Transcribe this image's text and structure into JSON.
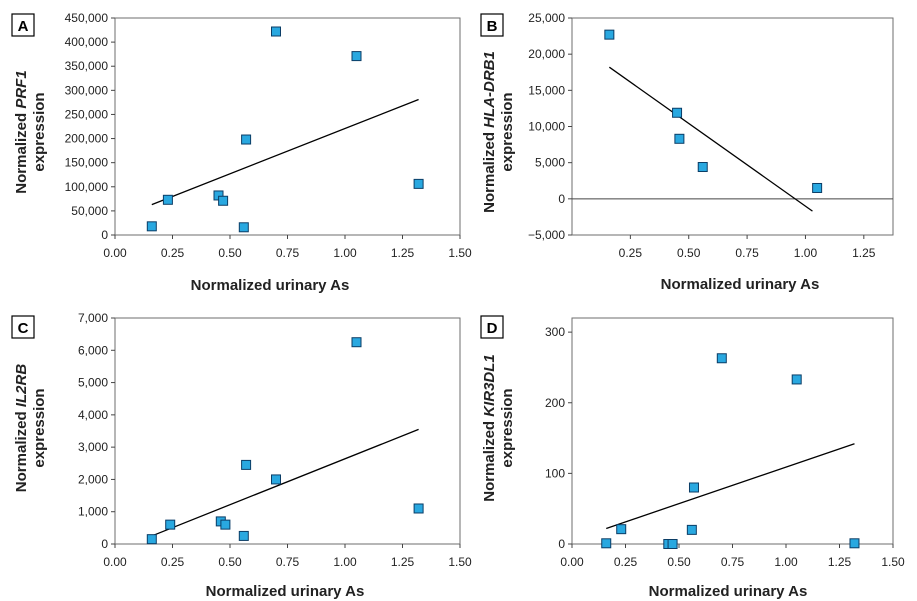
{
  "chart_data": [
    {
      "panel": "A",
      "type": "scatter",
      "xlabel": "Normalized urinary As",
      "ylabel_prefix": "Normalized ",
      "ylabel_gene": "PRF1",
      "ylabel_suffix": "expression",
      "xlim": [
        0,
        1.5
      ],
      "ylim": [
        0,
        450000
      ],
      "xticks": [
        0,
        0.25,
        0.5,
        0.75,
        1.0,
        1.25,
        1.5
      ],
      "xtick_labels": [
        "0.00",
        "0.25",
        "0.50",
        "0.75",
        "1.00",
        "1.25",
        "1.50"
      ],
      "yticks": [
        0,
        50000,
        100000,
        150000,
        200000,
        250000,
        300000,
        350000,
        400000,
        450000
      ],
      "ytick_labels": [
        "0",
        "50,000",
        "100,000",
        "150,000",
        "200,000",
        "250,000",
        "300,000",
        "350,000",
        "400,000",
        "450,000"
      ],
      "points": [
        [
          0.16,
          18000
        ],
        [
          0.23,
          73000
        ],
        [
          0.45,
          82000
        ],
        [
          0.47,
          71000
        ],
        [
          0.56,
          16000
        ],
        [
          0.57,
          198000
        ],
        [
          0.7,
          422000
        ],
        [
          1.05,
          371000
        ],
        [
          1.32,
          106000
        ]
      ],
      "fit_line": [
        [
          0.16,
          63000
        ],
        [
          1.32,
          281000
        ]
      ],
      "zero_line": false,
      "marker_color": "#29a8e0",
      "line_color": "#000000"
    },
    {
      "panel": "B",
      "type": "scatter",
      "xlabel": "Normalized urinary As",
      "ylabel_prefix": "Normalized ",
      "ylabel_gene": "HLA-DRB1",
      "ylabel_suffix": "expression",
      "xlim": [
        0,
        1.375
      ],
      "ylim": [
        -5000,
        25000
      ],
      "xticks": [
        0.25,
        0.5,
        0.75,
        1.0,
        1.25
      ],
      "xtick_labels": [
        "0.25",
        "0.50",
        "0.75",
        "1.00",
        "1.25"
      ],
      "yticks": [
        -5000,
        0,
        5000,
        10000,
        15000,
        20000,
        25000
      ],
      "ytick_labels": [
        "−5,000",
        "0",
        "5,000",
        "10,000",
        "15,000",
        "20,000",
        "25,000"
      ],
      "points": [
        [
          0.16,
          22700
        ],
        [
          0.45,
          11900
        ],
        [
          0.46,
          8300
        ],
        [
          0.56,
          4400
        ],
        [
          1.05,
          1500
        ]
      ],
      "fit_line": [
        [
          0.16,
          18200
        ],
        [
          1.03,
          -1700
        ]
      ],
      "zero_line": true,
      "marker_color": "#29a8e0",
      "line_color": "#000000"
    },
    {
      "panel": "C",
      "type": "scatter",
      "xlabel": "Normalized urinary As",
      "ylabel_prefix": "Normalized ",
      "ylabel_gene": "IL2RB",
      "ylabel_suffix": "expression",
      "xlim": [
        0,
        1.5
      ],
      "ylim": [
        0,
        7000
      ],
      "xticks": [
        0,
        0.25,
        0.5,
        0.75,
        1.0,
        1.25,
        1.5
      ],
      "xtick_labels": [
        "0.00",
        "0.25",
        "0.50",
        "0.75",
        "1.00",
        "1.25",
        "1.50"
      ],
      "yticks": [
        0,
        1000,
        2000,
        3000,
        4000,
        5000,
        6000,
        7000
      ],
      "ytick_labels": [
        "0",
        "1,000",
        "2,000",
        "3,000",
        "4,000",
        "5,000",
        "6,000",
        "7,000"
      ],
      "points": [
        [
          0.16,
          150
        ],
        [
          0.24,
          600
        ],
        [
          0.46,
          700
        ],
        [
          0.48,
          600
        ],
        [
          0.56,
          250
        ],
        [
          0.57,
          2450
        ],
        [
          0.7,
          2000
        ],
        [
          1.05,
          6250
        ],
        [
          1.32,
          1100
        ]
      ],
      "fit_line": [
        [
          0.16,
          250
        ],
        [
          1.32,
          3550
        ]
      ],
      "zero_line": false,
      "marker_color": "#29a8e0",
      "line_color": "#000000"
    },
    {
      "panel": "D",
      "type": "scatter",
      "xlabel": "Normalized urinary As",
      "ylabel_prefix": "Normalized ",
      "ylabel_gene": "KIR3DL1",
      "ylabel_suffix": "expression",
      "xlim": [
        0,
        1.5
      ],
      "ylim": [
        0,
        320
      ],
      "xticks": [
        0,
        0.25,
        0.5,
        0.75,
        1.0,
        1.25,
        1.5
      ],
      "xtick_labels": [
        "0.00",
        "0.25",
        "0.50",
        "0.75",
        "1.00",
        "1.25",
        "1.50"
      ],
      "yticks": [
        0,
        100,
        200,
        300
      ],
      "ytick_labels": [
        "0",
        "100",
        "200",
        "300"
      ],
      "points": [
        [
          0.16,
          1
        ],
        [
          0.23,
          21
        ],
        [
          0.45,
          0
        ],
        [
          0.47,
          0
        ],
        [
          0.56,
          20
        ],
        [
          0.57,
          80
        ],
        [
          0.7,
          263
        ],
        [
          1.05,
          233
        ],
        [
          1.32,
          1
        ]
      ],
      "fit_line": [
        [
          0.16,
          22
        ],
        [
          1.32,
          142
        ]
      ],
      "zero_line": false,
      "marker_color": "#29a8e0",
      "line_color": "#000000"
    }
  ]
}
